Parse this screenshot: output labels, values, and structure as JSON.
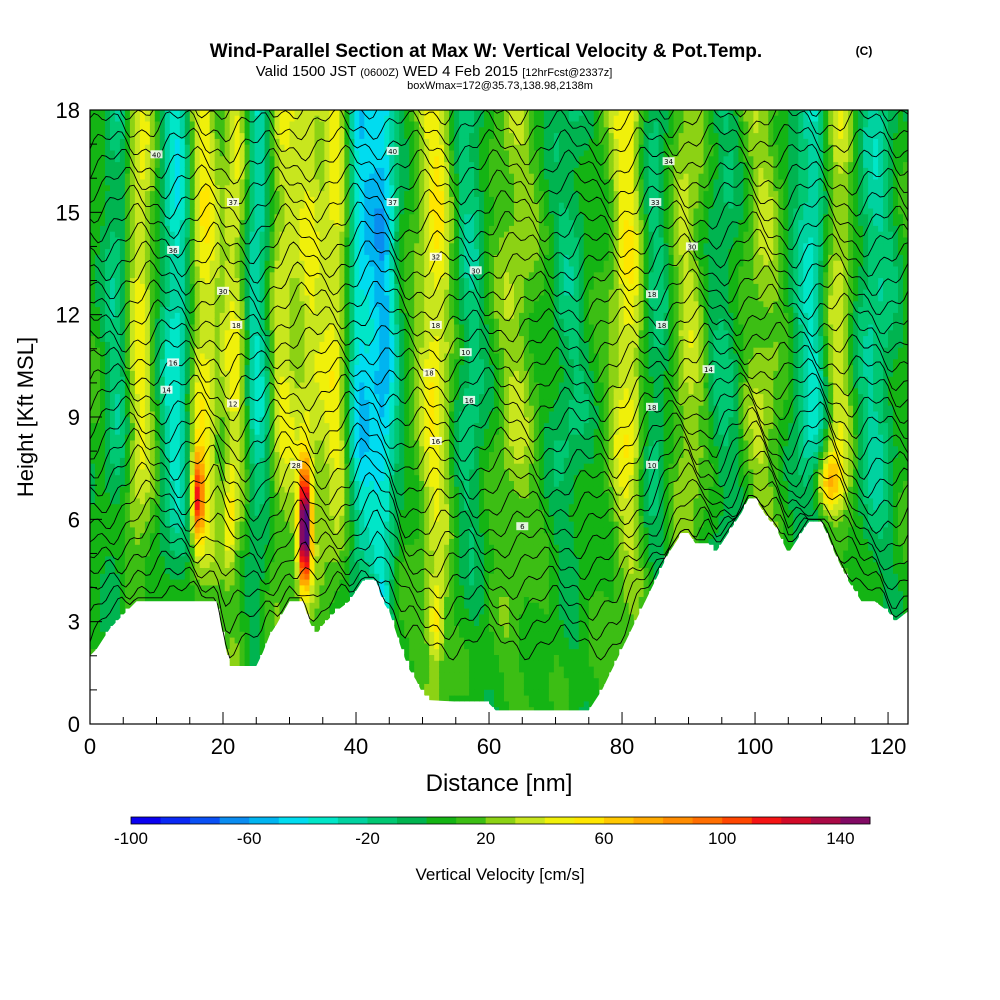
{
  "header": {
    "title": "Wind-Parallel Section at Max W: Vertical Velocity & Pot.Temp.",
    "title_mark": "(C)",
    "valid_prefix": "Valid 1500 JST",
    "valid_utc": "(0600Z)",
    "valid_date": "WED 4 Feb 2015",
    "forecast": "[12hrFcst@2337z]",
    "box_info": "boxWmax=172@35.73,138.98,2138m"
  },
  "chart_data": {
    "type": "heatmap",
    "xlabel": "Distance [nm]",
    "ylabel": "Height [Kft MSL]",
    "xlim": [
      0,
      123
    ],
    "ylim": [
      0,
      18
    ],
    "x_ticks": [
      "0",
      "20",
      "40",
      "60",
      "80",
      "100",
      "120"
    ],
    "y_ticks": [
      "0",
      "3",
      "6",
      "9",
      "12",
      "15",
      "18"
    ],
    "colorbar": {
      "label": "Vertical Velocity [cm/s]",
      "min": -100,
      "max": 150,
      "step": 10,
      "tick_labels": [
        "-100",
        "-60",
        "-20",
        "20",
        "60",
        "100",
        "140"
      ],
      "colors": [
        "#0a00f0",
        "#0a28f5",
        "#0a50f5",
        "#0a8cf0",
        "#00b4f0",
        "#00dcf0",
        "#00e6c8",
        "#00d2a0",
        "#00c873",
        "#00b450",
        "#14b414",
        "#3cbe14",
        "#8cd214",
        "#c8e61e",
        "#f0f00a",
        "#ffe600",
        "#ffc800",
        "#ffaa00",
        "#ff8c00",
        "#ff6e00",
        "#ff4600",
        "#f51414",
        "#d20a28",
        "#aa0a46",
        "#820a64",
        "#500a82"
      ]
    },
    "terrain_kft": [
      [
        0,
        2
      ],
      [
        1,
        2.2
      ],
      [
        2,
        2.5
      ],
      [
        3,
        2.8
      ],
      [
        5,
        3.2
      ],
      [
        7,
        3.6
      ],
      [
        19,
        3.6
      ],
      [
        20,
        2.6
      ],
      [
        21,
        1.7
      ],
      [
        25,
        1.7
      ],
      [
        26,
        2.1
      ],
      [
        27,
        2.6
      ],
      [
        28,
        2.9
      ],
      [
        30,
        3.6
      ],
      [
        32,
        3.6
      ],
      [
        33,
        3.0
      ],
      [
        34,
        2.6
      ],
      [
        35,
        2.9
      ],
      [
        37,
        3.3
      ],
      [
        39,
        3.6
      ],
      [
        41,
        4.2
      ],
      [
        43,
        4.2
      ],
      [
        44,
        3.6
      ],
      [
        45,
        3.3
      ],
      [
        46,
        2.7
      ],
      [
        47,
        2.1
      ],
      [
        48,
        1.6
      ],
      [
        49,
        1.3
      ],
      [
        50,
        0.9
      ],
      [
        51,
        0.7
      ],
      [
        60,
        0.6
      ],
      [
        61,
        0.4
      ],
      [
        75,
        0.4
      ],
      [
        76,
        0.7
      ],
      [
        77,
        1.0
      ],
      [
        78,
        1.4
      ],
      [
        79,
        1.8
      ],
      [
        80,
        2.2
      ],
      [
        81,
        2.6
      ],
      [
        82,
        3.0
      ],
      [
        83,
        3.4
      ],
      [
        84,
        3.8
      ],
      [
        85,
        4.2
      ],
      [
        86,
        4.6
      ],
      [
        87,
        5.0
      ],
      [
        88,
        5.3
      ],
      [
        89,
        5.6
      ],
      [
        90,
        5.6
      ],
      [
        91,
        5.3
      ],
      [
        93,
        5.3
      ],
      [
        94,
        5.0
      ],
      [
        95,
        5.3
      ],
      [
        96,
        5.6
      ],
      [
        97,
        5.9
      ],
      [
        98,
        6.2
      ],
      [
        99,
        6.6
      ],
      [
        100,
        6.6
      ],
      [
        101,
        6.3
      ],
      [
        102,
        6.0
      ],
      [
        103,
        5.8
      ],
      [
        104,
        5.4
      ],
      [
        105,
        5.0
      ],
      [
        106,
        5.3
      ],
      [
        107,
        5.6
      ],
      [
        108,
        5.9
      ],
      [
        110,
        5.9
      ],
      [
        111,
        5.5
      ],
      [
        112,
        5.0
      ],
      [
        113,
        4.6
      ],
      [
        114,
        4.2
      ],
      [
        115,
        3.9
      ],
      [
        116,
        3.6
      ],
      [
        118,
        3.6
      ],
      [
        120,
        3.3
      ],
      [
        121,
        3.0
      ],
      [
        123,
        3.3
      ]
    ],
    "wave_columns": [
      {
        "x": 4,
        "w": 2.0,
        "amp": -25
      },
      {
        "x": 7.5,
        "w": 2.0,
        "amp": 35
      },
      {
        "x": 13,
        "w": 2.4,
        "amp": -45
      },
      {
        "x": 17,
        "w": 2.2,
        "amp": 40
      },
      {
        "x": 22,
        "w": 2.0,
        "amp": 35
      },
      {
        "x": 25,
        "w": 2.0,
        "amp": -40
      },
      {
        "x": 29,
        "w": 2.0,
        "amp": 30
      },
      {
        "x": 33,
        "w": 2.0,
        "amp": 30
      },
      {
        "x": 37,
        "w": 2.2,
        "amp": 35
      },
      {
        "x": 40.5,
        "w": 2.0,
        "amp": -50
      },
      {
        "x": 44,
        "w": 2.2,
        "amp": -60
      },
      {
        "x": 52,
        "w": 2.6,
        "amp": 40
      },
      {
        "x": 57,
        "w": 2.6,
        "amp": -25
      },
      {
        "x": 64,
        "w": 3.0,
        "amp": 20
      },
      {
        "x": 72,
        "w": 3.0,
        "amp": -20
      },
      {
        "x": 81,
        "w": 2.5,
        "amp": 40
      },
      {
        "x": 85,
        "w": 2.5,
        "amp": -25
      },
      {
        "x": 90,
        "w": 3.0,
        "amp": 25
      },
      {
        "x": 95,
        "w": 3.0,
        "amp": -20
      },
      {
        "x": 101,
        "w": 3.0,
        "amp": 20
      },
      {
        "x": 109,
        "w": 3.0,
        "amp": -45
      },
      {
        "x": 112,
        "w": 2.5,
        "amp": 40
      },
      {
        "x": 118,
        "w": 3.0,
        "amp": -30
      }
    ],
    "max_cells": [
      {
        "x": 32.3,
        "y": 5.8,
        "sx": 0.9,
        "sy": 1.7,
        "amp": 150
      },
      {
        "x": 16.2,
        "y": 6.6,
        "sx": 0.9,
        "sy": 1.3,
        "amp": 90
      },
      {
        "x": 111,
        "y": 7.1,
        "sx": 1.8,
        "sy": 0.9,
        "amp": 60
      },
      {
        "x": 52,
        "y": 3.0,
        "sx": 1.2,
        "sy": 1.2,
        "amp": 45
      },
      {
        "x": 44,
        "y": 3.0,
        "sx": 1.0,
        "sy": 1.2,
        "amp": -50
      },
      {
        "x": 21,
        "y": 6.0,
        "sx": 0.8,
        "sy": 1.5,
        "amp": 30
      }
    ],
    "theta_contours": {
      "count": 28,
      "labels": [
        {
          "x": 10,
          "y": 16.7,
          "text": "40"
        },
        {
          "x": 21.5,
          "y": 15.3,
          "text": "37"
        },
        {
          "x": 12.5,
          "y": 13.9,
          "text": "36"
        },
        {
          "x": 20,
          "y": 12.7,
          "text": "30"
        },
        {
          "x": 22,
          "y": 11.7,
          "text": "18"
        },
        {
          "x": 12.5,
          "y": 10.6,
          "text": "16"
        },
        {
          "x": 11.5,
          "y": 9.8,
          "text": "14"
        },
        {
          "x": 21.5,
          "y": 9.4,
          "text": "12"
        },
        {
          "x": 31,
          "y": 7.6,
          "text": "28"
        },
        {
          "x": 45.5,
          "y": 16.8,
          "text": "40"
        },
        {
          "x": 45.5,
          "y": 15.3,
          "text": "37"
        },
        {
          "x": 52,
          "y": 13.7,
          "text": "32"
        },
        {
          "x": 58,
          "y": 13.3,
          "text": "30"
        },
        {
          "x": 52,
          "y": 11.7,
          "text": "18"
        },
        {
          "x": 56.5,
          "y": 10.9,
          "text": "10"
        },
        {
          "x": 51,
          "y": 10.3,
          "text": "18"
        },
        {
          "x": 57,
          "y": 9.5,
          "text": "16"
        },
        {
          "x": 52,
          "y": 8.3,
          "text": "16"
        },
        {
          "x": 65,
          "y": 5.8,
          "text": "6"
        },
        {
          "x": 87,
          "y": 16.5,
          "text": "34"
        },
        {
          "x": 85,
          "y": 15.3,
          "text": "33"
        },
        {
          "x": 90.5,
          "y": 14.0,
          "text": "30"
        },
        {
          "x": 84.5,
          "y": 12.6,
          "text": "18"
        },
        {
          "x": 86,
          "y": 11.7,
          "text": "18"
        },
        {
          "x": 93,
          "y": 10.4,
          "text": "14"
        },
        {
          "x": 84.5,
          "y": 9.3,
          "text": "18"
        },
        {
          "x": 84.5,
          "y": 7.6,
          "text": "10"
        }
      ]
    },
    "grid": false,
    "legend": "colorbar-bottom"
  }
}
